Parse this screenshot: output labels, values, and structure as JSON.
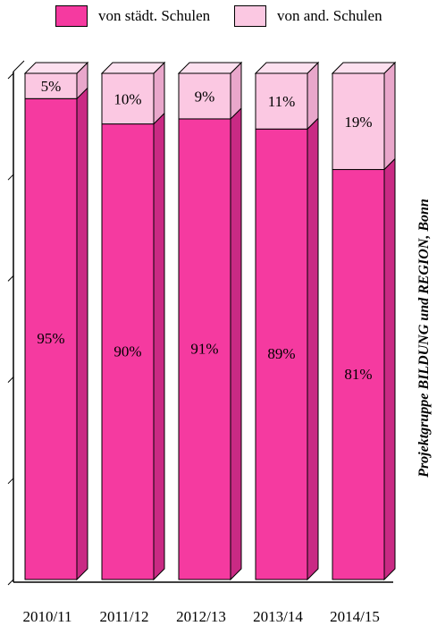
{
  "legend": {
    "series_0": "von städt. Schulen",
    "series_1": "von and. Schulen"
  },
  "source_note": "Projektgruppe BILDUNG und REGION, Bonn",
  "colors": {
    "series_0": "#f53aa0",
    "series_0_side": "#c92a84",
    "series_0_top": "#f76ab6",
    "series_1": "#fbc8e2",
    "series_1_side": "#e9a7cb",
    "series_1_top": "#fde0ef"
  },
  "chart_data": {
    "type": "bar",
    "stacked": true,
    "categories": [
      "2010/11",
      "2011/12",
      "2012/13",
      "2013/14",
      "2014/15"
    ],
    "series": [
      {
        "name": "von städt. Schulen",
        "values": [
          95,
          90,
          91,
          89,
          81
        ],
        "labels": [
          "95%",
          "90%",
          "91%",
          "89%",
          "81%"
        ]
      },
      {
        "name": "von and. Schulen",
        "values": [
          5,
          10,
          9,
          11,
          19
        ],
        "labels": [
          "5%",
          "10%",
          "9%",
          "11%",
          "19%"
        ]
      }
    ],
    "ylim": [
      0,
      100
    ],
    "grid": false,
    "legend_position": "top"
  }
}
